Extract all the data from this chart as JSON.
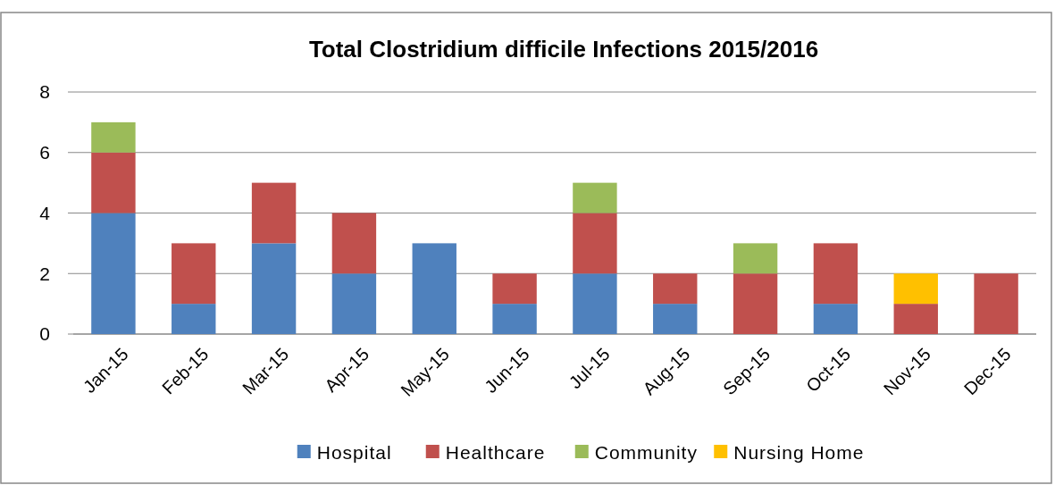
{
  "chart_data": {
    "type": "bar",
    "title": "Total Clostridium difficile Infections 2015/2016",
    "categories": [
      "Jan-15",
      "Feb-15",
      "Mar-15",
      "Apr-15",
      "May-15",
      "Jun-15",
      "Jul-15",
      "Aug-15",
      "Sep-15",
      "Oct-15",
      "Nov-15",
      "Dec-15"
    ],
    "series": [
      {
        "name": "Hospital",
        "color": "#4f81bd",
        "values": [
          4,
          1,
          3,
          2,
          3,
          1,
          2,
          1,
          0,
          1,
          0,
          0
        ]
      },
      {
        "name": "Healthcare",
        "color": "#c0504d",
        "values": [
          2,
          2,
          2,
          2,
          0,
          1,
          2,
          1,
          2,
          2,
          1,
          2
        ]
      },
      {
        "name": "Community",
        "color": "#9bbb59",
        "values": [
          1,
          0,
          0,
          0,
          0,
          0,
          1,
          0,
          1,
          0,
          0,
          0
        ]
      },
      {
        "name": "Nursing Home",
        "color": "#ffc000",
        "values": [
          0,
          0,
          0,
          0,
          0,
          0,
          0,
          0,
          0,
          0,
          1,
          0
        ]
      }
    ],
    "stacked": true,
    "ylim": [
      0,
      8
    ],
    "yticks": [
      0,
      2,
      4,
      6,
      8
    ],
    "grid": "y",
    "legend": "bottom"
  }
}
